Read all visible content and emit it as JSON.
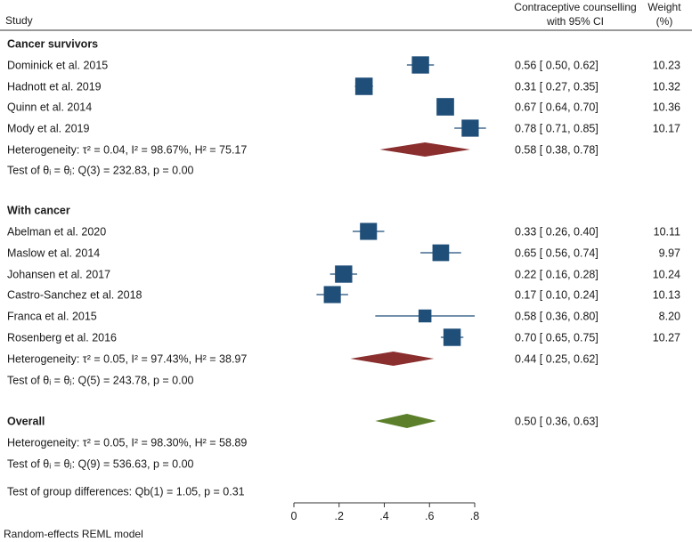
{
  "chart_data": {
    "type": "forest",
    "header": {
      "study": "Study",
      "effect_line1": "Contraceptive counselling",
      "effect_line2": "with 95% CI",
      "weight_line1": "Weight",
      "weight_line2": "(%)"
    },
    "marker_color": "#1f4e79",
    "subgroup_diamond_color": "#8b2e2e",
    "overall_diamond_color": "#5b7f2a",
    "groups": [
      {
        "name": "Cancer survivors",
        "studies": [
          {
            "label": "Dominick et al.  2015",
            "est": 0.56,
            "lo": 0.5,
            "hi": 0.62,
            "ci_text": "0.56 [ 0.50,  0.62]",
            "weight": "10.23"
          },
          {
            "label": "Hadnott et al. 2019",
            "est": 0.31,
            "lo": 0.27,
            "hi": 0.35,
            "ci_text": "0.31 [ 0.27,  0.35]",
            "weight": "10.32"
          },
          {
            "label": "Quinn et al. 2014",
            "est": 0.67,
            "lo": 0.64,
            "hi": 0.7,
            "ci_text": "0.67 [ 0.64,  0.70]",
            "weight": "10.36"
          },
          {
            "label": "Mody et al. 2019",
            "est": 0.78,
            "lo": 0.71,
            "hi": 0.85,
            "ci_text": "0.78 [ 0.71,  0.85]",
            "weight": "10.17"
          }
        ],
        "pooled": {
          "label": "Heterogeneity: τ² = 0.04, I² = 98.67%, H² = 75.17",
          "est": 0.58,
          "lo": 0.38,
          "hi": 0.78,
          "ci_text": "0.58 [ 0.38,  0.78]"
        },
        "test": "Test of θᵢ = θⱼ: Q(3) = 232.83, p = 0.00"
      },
      {
        "name": "With cancer",
        "studies": [
          {
            "label": "Abelman et al. 2020",
            "est": 0.33,
            "lo": 0.26,
            "hi": 0.4,
            "ci_text": "0.33 [ 0.26,  0.40]",
            "weight": "10.11"
          },
          {
            "label": "Maslow et al. 2014",
            "est": 0.65,
            "lo": 0.56,
            "hi": 0.74,
            "ci_text": "0.65 [ 0.56,  0.74]",
            "weight": "9.97"
          },
          {
            "label": "Johansen et al. 2017",
            "est": 0.22,
            "lo": 0.16,
            "hi": 0.28,
            "ci_text": "0.22 [ 0.16,  0.28]",
            "weight": "10.24"
          },
          {
            "label": "Castro-Sanchez et al.  2018",
            "est": 0.17,
            "lo": 0.1,
            "hi": 0.24,
            "ci_text": "0.17 [ 0.10,  0.24]",
            "weight": "10.13"
          },
          {
            "label": "Franca et al. 2015",
            "est": 0.58,
            "lo": 0.36,
            "hi": 0.8,
            "ci_text": "0.58 [ 0.36,  0.80]",
            "weight": "8.20"
          },
          {
            "label": "Rosenberg et al.  2016",
            "est": 0.7,
            "lo": 0.65,
            "hi": 0.75,
            "ci_text": "0.70 [ 0.65,  0.75]",
            "weight": "10.27"
          }
        ],
        "pooled": {
          "label": "Heterogeneity: τ² = 0.05, I² = 97.43%, H² = 38.97",
          "est": 0.44,
          "lo": 0.25,
          "hi": 0.62,
          "ci_text": "0.44 [ 0.25,  0.62]"
        },
        "test": "Test of θᵢ = θⱼ: Q(5) = 243.78, p = 0.00"
      }
    ],
    "overall": {
      "name": "Overall",
      "est": 0.5,
      "lo": 0.36,
      "hi": 0.63,
      "ci_text": "0.50 [ 0.36,  0.63]",
      "heterogeneity": "Heterogeneity: τ² = 0.05, I² = 98.30%, H² = 58.89",
      "test": "Test of θᵢ = θⱼ: Q(9) = 536.63, p = 0.00",
      "group_test": "Test of group differences: Qb(1) = 1.05, p = 0.31"
    },
    "x_axis": {
      "range": [
        0,
        0.8
      ],
      "ticks": [
        0,
        0.2,
        0.4,
        0.6,
        0.8
      ],
      "tick_labels": [
        "0",
        ".2",
        ".4",
        ".6",
        ".8"
      ]
    },
    "footnote": "Random-effects REML model"
  }
}
